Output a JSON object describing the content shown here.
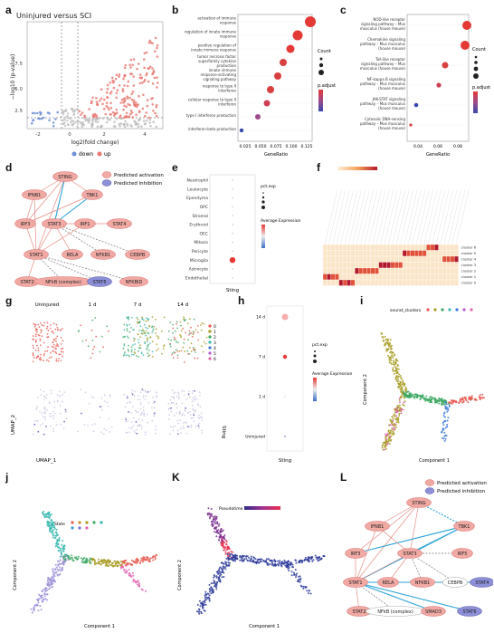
{
  "labels": {
    "a": "a",
    "b": "b",
    "c": "c",
    "d": "d",
    "e": "e",
    "f": "f",
    "g": "g",
    "h": "h",
    "i": "i",
    "j": "j",
    "k": "K",
    "l": "L"
  },
  "panel_a": {
    "title": "Uninjured versus SCI",
    "xlabel": "log2(fold change)",
    "ylabel": "−log10 (p-value)",
    "legend": [
      "down",
      "up"
    ],
    "colors": {
      "down": "#6f8fd6",
      "up": "#e8776f",
      "ns": "#bbbbbb"
    }
  },
  "panel_b": {
    "xlabel": "GeneRatio",
    "terms": [
      "activation of immune response",
      "regulation of innate immune response",
      "positive regulation of innate immune response",
      "tumor necrosis factor superfamily cytokine production",
      "innate immune response-activating signaling pathway",
      "response to type II interferon",
      "cellular response to type II interferon",
      "type I interferon production",
      "interferon-beta production"
    ],
    "ticks": [
      "0.025",
      "0.050",
      "0.075",
      "0.100",
      "0.125"
    ],
    "legend_count": "Count",
    "legend_p": "p.adjust"
  },
  "panel_c": {
    "xlabel": "GeneRatio",
    "terms": [
      "NOD-like receptor signaling pathway – Mus musculus (house mouse)",
      "Chemokine signaling pathway – Mus musculus (house mouse)",
      "Toll-like receptor signaling pathway – Mus musculus (house mouse)",
      "NF-kappa B signaling pathway – Mus musculus (house mouse)",
      "JAK-STAT signaling pathway – Mus musculus (house mouse)",
      "Cytosolic DNA-sensing pathway – Mus musculus (house mouse)"
    ],
    "ticks": [
      "0.04",
      "0.06",
      "0.08"
    ],
    "legend_count": "Count",
    "legend_p": "p.adjust"
  },
  "panel_d": {
    "legend": [
      "Predicted activation",
      "Predicted inhibition"
    ],
    "nodes": {
      "sting": "STING",
      "ifnb1": "IFNB1",
      "tbk1": "TBK1",
      "irf3": "IRF3",
      "stat3": "STAT3",
      "irf1": "IRF1",
      "stat4": "STAT4",
      "stat1": "STAT1",
      "rela": "RELA",
      "nfkb1": "NFKB1",
      "cebpb": "CEBPB",
      "stat2": "STAT2",
      "nfkb": "NFkB (complex)",
      "stat6": "STAT6",
      "nfkbid": "NFKBID"
    }
  },
  "panel_e": {
    "cells": [
      "Neutrophil",
      "Leukocyte",
      "Ependyma",
      "OPC",
      "Stromal",
      "Erythroid",
      "OEC",
      "Mitosis",
      "Pericyte",
      "Microglia",
      "Astrocyte",
      "Endothelial"
    ],
    "xlabel": "Sting",
    "legend_pct": "pct.exp",
    "legend_avg": "Average Expression"
  },
  "panel_f": {
    "clusters": [
      "cluster 0",
      "cluster 1",
      "cluster 2",
      "cluster 3",
      "cluster 4",
      "cluster 5",
      "cluster 6"
    ]
  },
  "panel_g": {
    "timepoints": [
      "Uninjured",
      "1 d",
      "7 d",
      "14 d"
    ],
    "clusters": [
      "0",
      "1",
      "2",
      "3",
      "4",
      "5",
      "6"
    ],
    "xlabel": "UMAP_1",
    "ylabel": "UMAP_2",
    "gene": "Sting"
  },
  "panel_h": {
    "rows": [
      "14 d",
      "7 d",
      "1 d",
      "Uninjured"
    ],
    "xlabel": "Sting",
    "legend_pct": "pct.exp",
    "legend_avg": "Average Expression"
  },
  "panel_i": {
    "xlabel": "Component 1",
    "ylabel": "Component 2",
    "legend": "seurat_clusters"
  },
  "panel_j": {
    "xlabel": "Component 1",
    "ylabel": "Component 2",
    "legend": "State"
  },
  "panel_k": {
    "xlabel": "Component 1",
    "ylabel": "Component 2",
    "legend": "Pseudotime"
  },
  "panel_l": {
    "legend": [
      "Predicted activation",
      "Predicted inhibition"
    ],
    "nodes": {
      "sting": "STING",
      "ifnb1": "IFNB1",
      "tbk1": "TBK1",
      "irf3": "IRF3",
      "stat3": "STAT3",
      "irf5": "IRF5",
      "stat1": "STAT1",
      "rela": "RELA",
      "nfkb1": "NFKB1",
      "cebpb": "CEBPB",
      "stat4": "STAT4",
      "stat2": "STAT2",
      "nfkb": "NFkB (complex)",
      "smad3": "SMAD3",
      "stat6": "STAT6"
    }
  }
}
